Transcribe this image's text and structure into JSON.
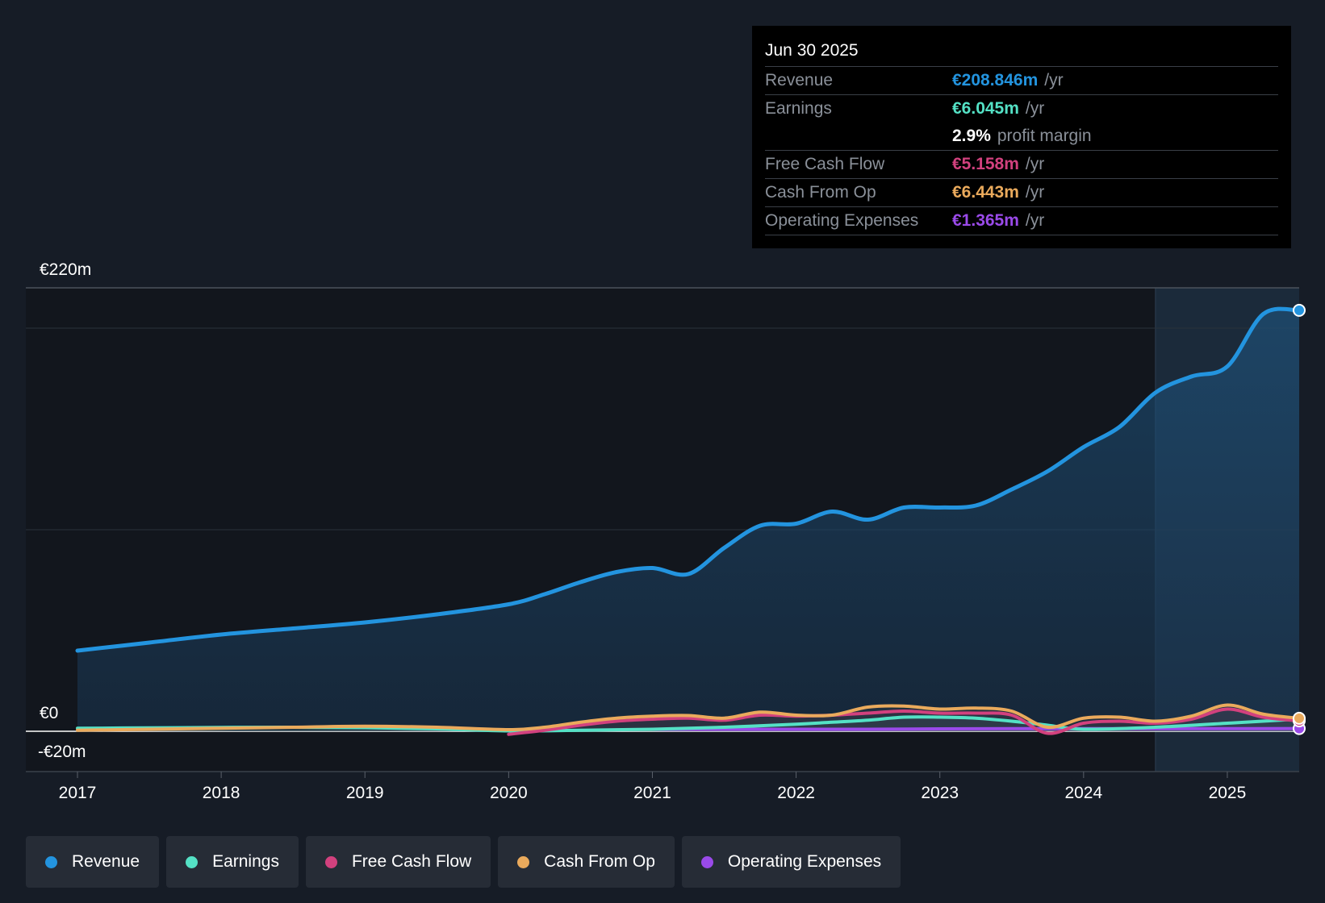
{
  "tooltip": {
    "date": "Jun 30 2025",
    "rows": [
      {
        "label": "Revenue",
        "value": "€208.846m",
        "unit": "/yr",
        "color": "#2394df"
      },
      {
        "label": "Earnings",
        "value": "€6.045m",
        "unit": "/yr",
        "color": "#54e1c5"
      },
      {
        "label": "",
        "value": "2.9%",
        "unit": "profit margin",
        "color": "#ffffff"
      },
      {
        "label": "Free Cash Flow",
        "value": "€5.158m",
        "unit": "/yr",
        "color": "#d2417e"
      },
      {
        "label": "Cash From Op",
        "value": "€6.443m",
        "unit": "/yr",
        "color": "#eaaa5c"
      },
      {
        "label": "Operating Expenses",
        "value": "€1.365m",
        "unit": "/yr",
        "color": "#9a4ae9"
      }
    ]
  },
  "legend": [
    {
      "label": "Revenue",
      "color": "#2394df"
    },
    {
      "label": "Earnings",
      "color": "#54e1c5"
    },
    {
      "label": "Free Cash Flow",
      "color": "#d2417e"
    },
    {
      "label": "Cash From Op",
      "color": "#eaaa5c"
    },
    {
      "label": "Operating Expenses",
      "color": "#9a4ae9"
    }
  ],
  "chart_data": {
    "type": "area",
    "title": "",
    "xlabel": "",
    "ylabel": "",
    "ylim": [
      -20,
      220
    ],
    "y_tick_labels": [
      "€220m",
      "€0",
      "-€20m"
    ],
    "x_tick_labels": [
      "2017",
      "2018",
      "2019",
      "2020",
      "2021",
      "2022",
      "2023",
      "2024",
      "2025"
    ],
    "x_ticks": [
      2017,
      2018,
      2019,
      2020,
      2021,
      2022,
      2023,
      2024,
      2025
    ],
    "xlim": [
      2016.64,
      2025.5
    ],
    "highlight_from": 2024.5,
    "series": [
      {
        "name": "Revenue",
        "color": "#2394df",
        "fill": true,
        "points": [
          [
            2017,
            40
          ],
          [
            2017.5,
            44
          ],
          [
            2018,
            48
          ],
          [
            2018.5,
            51
          ],
          [
            2019,
            54
          ],
          [
            2019.5,
            58
          ],
          [
            2020,
            63
          ],
          [
            2020.25,
            68
          ],
          [
            2020.5,
            74
          ],
          [
            2020.75,
            79
          ],
          [
            2021,
            81
          ],
          [
            2021.25,
            78
          ],
          [
            2021.5,
            91
          ],
          [
            2021.75,
            102
          ],
          [
            2022,
            103
          ],
          [
            2022.25,
            109
          ],
          [
            2022.5,
            105
          ],
          [
            2022.75,
            111
          ],
          [
            2023,
            111
          ],
          [
            2023.25,
            112
          ],
          [
            2023.5,
            120
          ],
          [
            2023.75,
            129
          ],
          [
            2024,
            141
          ],
          [
            2024.25,
            151
          ],
          [
            2024.5,
            168
          ],
          [
            2024.75,
            176
          ],
          [
            2025,
            181
          ],
          [
            2025.25,
            207
          ],
          [
            2025.5,
            208.846
          ]
        ]
      },
      {
        "name": "Earnings",
        "color": "#54e1c5",
        "fill": false,
        "points": [
          [
            2017,
            1.5
          ],
          [
            2017.5,
            1.7
          ],
          [
            2018,
            1.9
          ],
          [
            2018.5,
            2
          ],
          [
            2019,
            1.8
          ],
          [
            2019.5,
            1.2
          ],
          [
            2020,
            0.2
          ],
          [
            2020.5,
            0.5
          ],
          [
            2021,
            1
          ],
          [
            2021.5,
            2
          ],
          [
            2022,
            3.5
          ],
          [
            2022.25,
            4.5
          ],
          [
            2022.5,
            5.5
          ],
          [
            2022.75,
            7
          ],
          [
            2023,
            7
          ],
          [
            2023.25,
            6.5
          ],
          [
            2023.5,
            5
          ],
          [
            2023.75,
            3
          ],
          [
            2024,
            1
          ],
          [
            2024.5,
            2
          ],
          [
            2025,
            4
          ],
          [
            2025.5,
            6.045
          ]
        ]
      },
      {
        "name": "Free Cash Flow",
        "color": "#d2417e",
        "fill": false,
        "points": [
          [
            2020,
            -1.5
          ],
          [
            2020.25,
            0.5
          ],
          [
            2020.5,
            3
          ],
          [
            2020.75,
            5
          ],
          [
            2021,
            6
          ],
          [
            2021.25,
            6.5
          ],
          [
            2021.5,
            5.5
          ],
          [
            2021.75,
            8
          ],
          [
            2022,
            7.5
          ],
          [
            2022.25,
            8
          ],
          [
            2022.5,
            9
          ],
          [
            2022.75,
            10
          ],
          [
            2023,
            9
          ],
          [
            2023.25,
            9
          ],
          [
            2023.5,
            8
          ],
          [
            2023.75,
            -1
          ],
          [
            2024,
            4
          ],
          [
            2024.25,
            5
          ],
          [
            2024.5,
            4
          ],
          [
            2024.75,
            6
          ],
          [
            2025,
            11
          ],
          [
            2025.25,
            7
          ],
          [
            2025.5,
            5.158
          ]
        ]
      },
      {
        "name": "Cash From Op",
        "color": "#eaaa5c",
        "fill": false,
        "points": [
          [
            2017,
            0.5
          ],
          [
            2017.5,
            1
          ],
          [
            2018,
            1.5
          ],
          [
            2018.5,
            2
          ],
          [
            2019,
            2.5
          ],
          [
            2019.5,
            2
          ],
          [
            2020,
            0.8
          ],
          [
            2020.25,
            2
          ],
          [
            2020.5,
            4.5
          ],
          [
            2020.75,
            6.5
          ],
          [
            2021,
            7.5
          ],
          [
            2021.25,
            7.8
          ],
          [
            2021.5,
            6.5
          ],
          [
            2021.75,
            9.5
          ],
          [
            2022,
            8
          ],
          [
            2022.25,
            8
          ],
          [
            2022.5,
            12
          ],
          [
            2022.75,
            12.5
          ],
          [
            2023,
            11
          ],
          [
            2023.25,
            11.5
          ],
          [
            2023.5,
            10
          ],
          [
            2023.75,
            2
          ],
          [
            2024,
            6.5
          ],
          [
            2024.25,
            7
          ],
          [
            2024.5,
            5
          ],
          [
            2024.75,
            7.5
          ],
          [
            2025,
            13
          ],
          [
            2025.25,
            8.5
          ],
          [
            2025.5,
            6.443
          ]
        ]
      },
      {
        "name": "Operating Expenses",
        "color": "#9a4ae9",
        "fill": false,
        "points": [
          [
            2021,
            1
          ],
          [
            2021.5,
            1
          ],
          [
            2022,
            1
          ],
          [
            2022.5,
            1
          ],
          [
            2023,
            1.2
          ],
          [
            2023.5,
            1.3
          ],
          [
            2024,
            1.3
          ],
          [
            2024.5,
            1.3
          ],
          [
            2025,
            1.3
          ],
          [
            2025.5,
            1.365
          ]
        ]
      }
    ]
  }
}
